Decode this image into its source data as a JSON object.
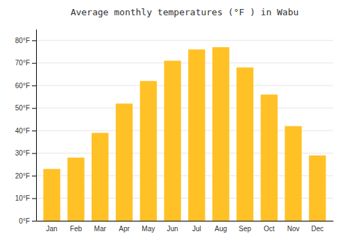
{
  "chart_data": {
    "type": "bar",
    "title": "Average monthly temperatures (°F ) in Wabu",
    "categories": [
      "Jan",
      "Feb",
      "Mar",
      "Apr",
      "May",
      "Jun",
      "Jul",
      "Aug",
      "Sep",
      "Oct",
      "Nov",
      "Dec"
    ],
    "values": [
      23,
      28,
      39,
      52,
      62,
      71,
      76,
      77,
      68,
      56,
      42,
      29
    ],
    "color": "#FFC125",
    "ylim": [
      0,
      85
    ],
    "yticks": [
      {
        "value": 0,
        "label": "0°F"
      },
      {
        "value": 10,
        "label": "10°F"
      },
      {
        "value": 20,
        "label": "20°F"
      },
      {
        "value": 30,
        "label": "30°F"
      },
      {
        "value": 40,
        "label": "40°F"
      },
      {
        "value": 50,
        "label": "50°F"
      },
      {
        "value": 60,
        "label": "60°F"
      },
      {
        "value": 70,
        "label": "70°F"
      },
      {
        "value": 80,
        "label": "80°F"
      }
    ],
    "grid": true
  }
}
